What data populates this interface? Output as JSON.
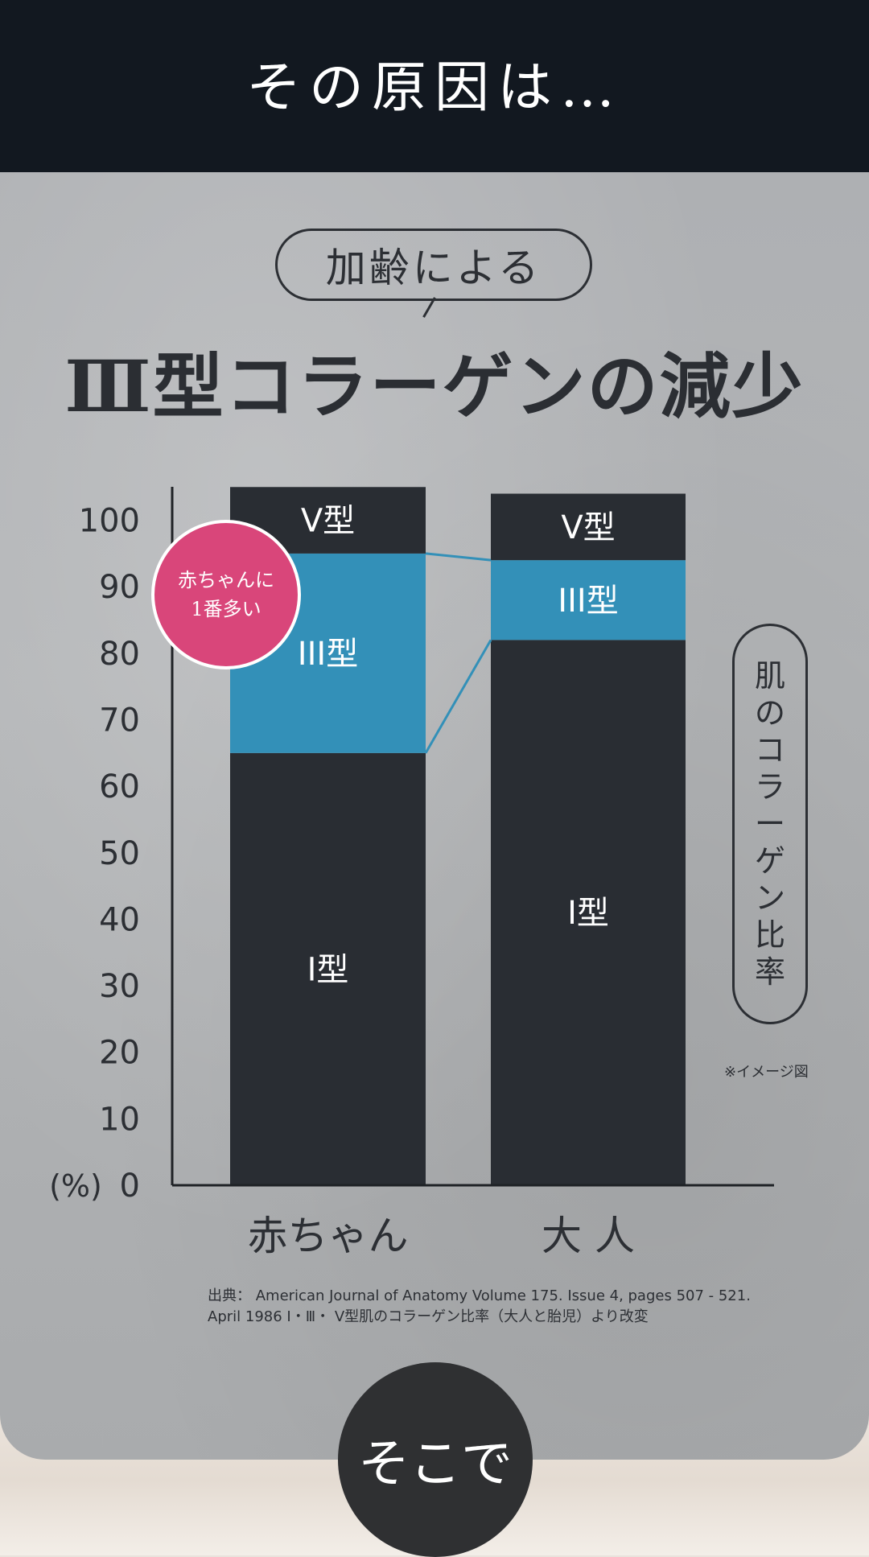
{
  "header": {
    "title": "その原因は…"
  },
  "pill": {
    "label": "加齢による"
  },
  "main_title": "Ⅲ型コラーゲンの減少",
  "side_label": [
    "肌",
    "の",
    "コ",
    "ラ",
    "ー",
    "ゲ",
    "ン",
    "比",
    "率"
  ],
  "note": "※イメージ図",
  "badge": {
    "line1": "赤ちゃんに",
    "line2": "1番多い"
  },
  "source": {
    "line1": "出典： American Journal of Anatomy Volume 175. Issue 4, pages 507 - 521.",
    "line2": "April 1986 Ⅰ・Ⅲ・ Ⅴ型肌のコラーゲン比率（大人と胎児）より改変"
  },
  "cta": {
    "label": "そこで"
  },
  "colors": {
    "type1": "#292d33",
    "type3": "#3390b8",
    "type5": "#292d33",
    "badge": "#d9467a"
  },
  "chart_data": {
    "type": "bar",
    "stacked": true,
    "categories": [
      "赤ちゃん",
      "大 人"
    ],
    "series": [
      {
        "name": "I型",
        "values": [
          65,
          82
        ]
      },
      {
        "name": "III型",
        "values": [
          30,
          12
        ]
      },
      {
        "name": "V型",
        "values": [
          10,
          10
        ]
      }
    ],
    "y_unit": "(%)",
    "yticks": [
      0,
      10,
      20,
      30,
      40,
      50,
      60,
      70,
      80,
      90,
      100
    ],
    "ylim": [
      0,
      106
    ],
    "grid": false
  }
}
